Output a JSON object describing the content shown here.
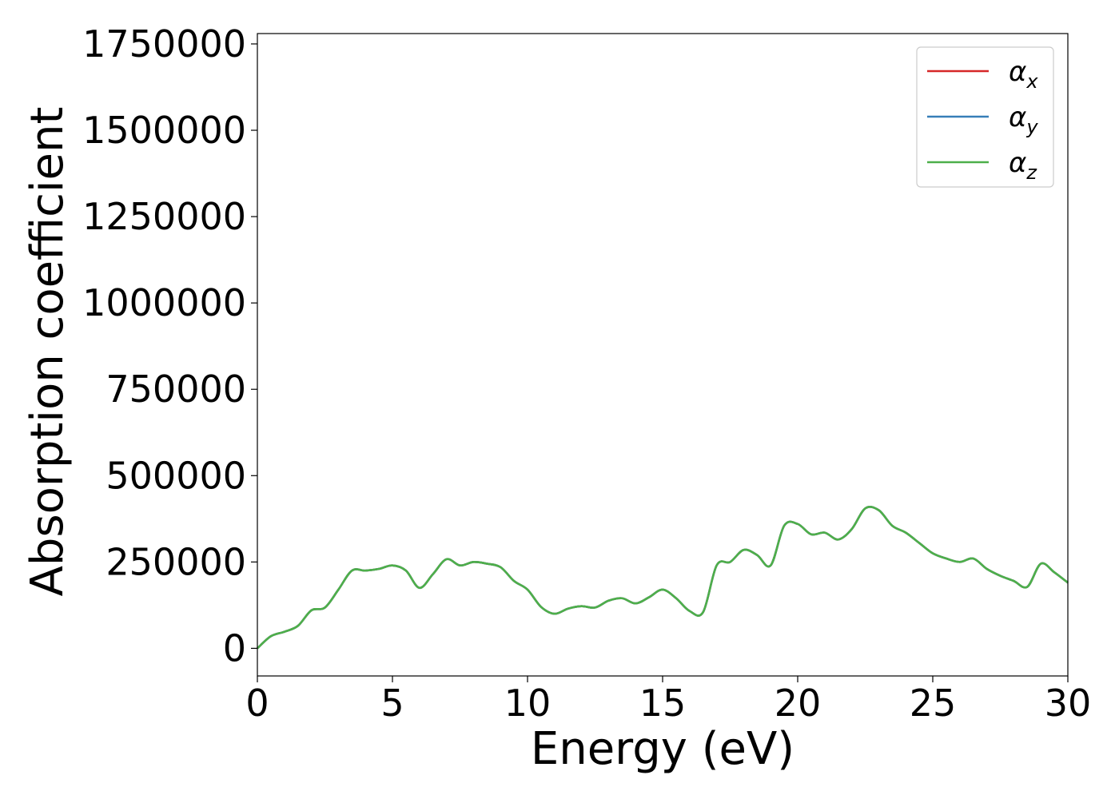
{
  "chart_data": {
    "type": "line",
    "xlabel": "Energy (eV)",
    "ylabel": "Absorption coefficient",
    "xlim": [
      0,
      30
    ],
    "ylim": [
      -80000,
      1780000
    ],
    "xticks": [
      "0",
      "5",
      "10",
      "15",
      "20",
      "25",
      "30"
    ],
    "yticks": [
      "0",
      "250000",
      "500000",
      "750000",
      "1000000",
      "1250000",
      "1500000",
      "1750000"
    ],
    "grid": false,
    "legend_position": "top-right",
    "x": [
      0,
      0.5,
      1,
      1.5,
      2,
      2.5,
      3,
      3.5,
      4,
      4.5,
      5,
      5.5,
      6,
      6.5,
      7,
      7.5,
      8,
      8.5,
      9,
      9.5,
      10,
      10.5,
      11,
      11.5,
      12,
      12.5,
      13,
      13.5,
      14,
      14.5,
      15,
      15.5,
      16,
      16.5,
      17,
      17.5,
      18,
      18.5,
      19,
      19.5,
      20,
      20.5,
      21,
      21.5,
      22,
      22.5,
      23,
      23.5,
      24,
      24.5,
      25,
      25.5,
      26,
      26.5,
      27,
      27.5,
      28,
      28.5,
      29,
      29.5,
      30
    ],
    "series": [
      {
        "name": "α_x",
        "label_main": "α",
        "label_sub": "x",
        "color": "#d62728",
        "values": [
          0,
          35000,
          48000,
          65000,
          110000,
          118000,
          170000,
          225000,
          225000,
          230000,
          240000,
          225000,
          175000,
          215000,
          258000,
          240000,
          250000,
          245000,
          235000,
          195000,
          170000,
          120000,
          100000,
          115000,
          122000,
          118000,
          138000,
          145000,
          130000,
          148000,
          170000,
          145000,
          108000,
          105000,
          240000,
          250000,
          285000,
          270000,
          240000,
          355000,
          360000,
          330000,
          335000,
          315000,
          345000,
          405000,
          400000,
          355000,
          335000,
          305000,
          275000,
          260000,
          250000,
          260000,
          230000,
          210000,
          195000,
          178000,
          245000,
          220000,
          190000
        ]
      },
      {
        "name": "α_y",
        "label_main": "α",
        "label_sub": "y",
        "color": "#377eb8",
        "values": [
          0,
          35000,
          48000,
          65000,
          110000,
          118000,
          170000,
          225000,
          225000,
          230000,
          240000,
          225000,
          175000,
          215000,
          258000,
          240000,
          250000,
          245000,
          235000,
          195000,
          170000,
          120000,
          100000,
          115000,
          122000,
          118000,
          138000,
          145000,
          130000,
          148000,
          170000,
          145000,
          108000,
          105000,
          240000,
          250000,
          285000,
          270000,
          240000,
          355000,
          360000,
          330000,
          335000,
          315000,
          345000,
          405000,
          400000,
          355000,
          335000,
          305000,
          275000,
          260000,
          250000,
          260000,
          230000,
          210000,
          195000,
          178000,
          245000,
          220000,
          190000
        ]
      },
      {
        "name": "α_z",
        "label_main": "α",
        "label_sub": "z",
        "color": "#4daf4a",
        "values": [
          0,
          35000,
          48000,
          65000,
          110000,
          118000,
          170000,
          225000,
          225000,
          230000,
          240000,
          225000,
          175000,
          215000,
          258000,
          240000,
          250000,
          245000,
          235000,
          195000,
          170000,
          120000,
          100000,
          115000,
          122000,
          118000,
          138000,
          145000,
          130000,
          148000,
          170000,
          145000,
          108000,
          105000,
          240000,
          250000,
          285000,
          270000,
          240000,
          355000,
          360000,
          330000,
          335000,
          315000,
          345000,
          405000,
          400000,
          355000,
          335000,
          305000,
          275000,
          260000,
          250000,
          260000,
          230000,
          210000,
          195000,
          178000,
          245000,
          220000,
          190000
        ]
      }
    ]
  }
}
